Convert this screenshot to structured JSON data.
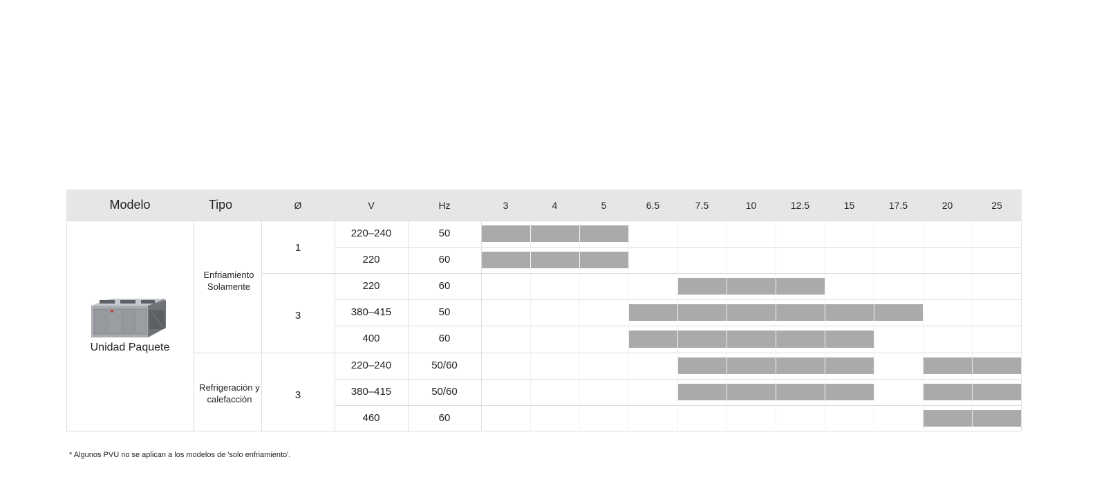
{
  "table": {
    "header": {
      "model": "Modelo",
      "type": "Tipo",
      "phase": "Ø",
      "voltage": "V",
      "freq": "Hz",
      "capacities": [
        "3",
        "4",
        "5",
        "6.5",
        "7.5",
        "10",
        "12.5",
        "15",
        "17.5",
        "20",
        "25"
      ]
    },
    "model_name": "Unidad Paquete",
    "groups": [
      {
        "type": "Enfriamiento Solamente",
        "phases": [
          {
            "phase": "1",
            "rows": [
              {
                "voltage": "220–240",
                "freq": "50",
                "available": [
                  "3",
                  "4",
                  "5"
                ]
              },
              {
                "voltage": "220",
                "freq": "60",
                "available": [
                  "3",
                  "4",
                  "5"
                ]
              }
            ]
          },
          {
            "phase": "3",
            "rows": [
              {
                "voltage": "220",
                "freq": "60",
                "available": [
                  "7.5",
                  "10",
                  "12.5"
                ]
              },
              {
                "voltage": "380–415",
                "freq": "50",
                "available": [
                  "6.5",
                  "7.5",
                  "10",
                  "12.5",
                  "15",
                  "17.5"
                ]
              },
              {
                "voltage": "400",
                "freq": "60",
                "available": [
                  "6.5",
                  "7.5",
                  "10",
                  "12.5",
                  "15"
                ]
              }
            ]
          }
        ]
      },
      {
        "type": "Refrigeración y calefacción",
        "phases": [
          {
            "phase": "3",
            "rows": [
              {
                "voltage": "220–240",
                "freq": "50/60",
                "available": [
                  "7.5",
                  "10",
                  "12.5",
                  "15",
                  "20",
                  "25"
                ]
              },
              {
                "voltage": "380–415",
                "freq": "50/60",
                "available": [
                  "7.5",
                  "10",
                  "12.5",
                  "15",
                  "20",
                  "25"
                ]
              },
              {
                "voltage": "460",
                "freq": "60",
                "available": [
                  "20",
                  "25"
                ]
              }
            ]
          }
        ]
      }
    ],
    "colors": {
      "header_bg": "#e6e6e6",
      "bar": "#aaaaaa",
      "grid": "#dddddd"
    }
  },
  "footnote": "* Algunos PVU no se aplican a los modelos de 'solo enfriamiento'."
}
